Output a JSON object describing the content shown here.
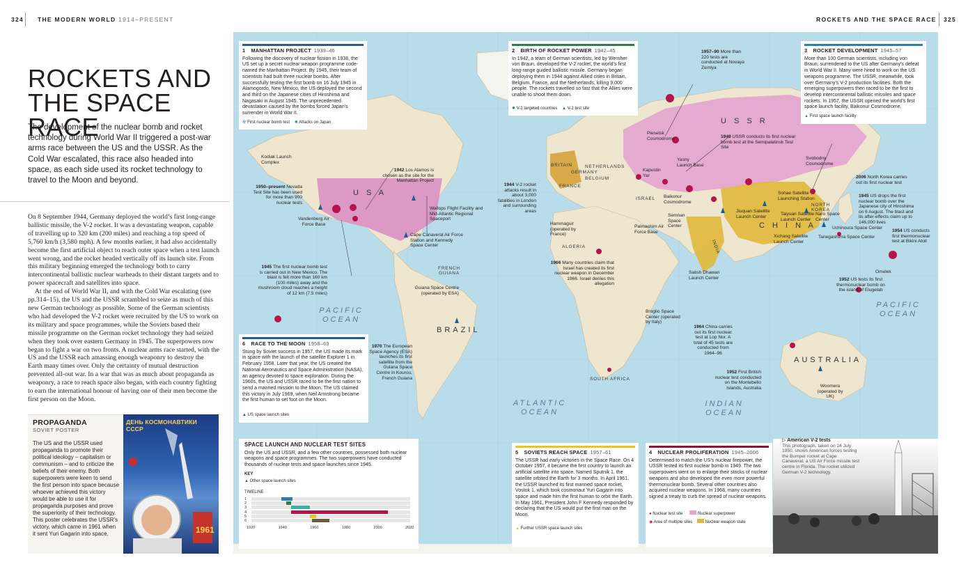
{
  "header": {
    "left_page": "324",
    "left_section_bold": "THE MODERN WORLD",
    "left_section_dates": "1914–PRESENT",
    "right_section": "ROCKETS AND THE SPACE RACE",
    "right_page": "325"
  },
  "title_line1": "ROCKETS AND",
  "title_line2": "THE SPACE RACE",
  "lead": "The development of the nuclear bomb and rocket technology during World War II triggered a post-war arms race between the US and the USSR. As the Cold War escalated, this race also headed into space, as each side used its rocket technology to travel to the Moon and beyond.",
  "body_paragraphs": [
    "On 8 September 1944, Germany deployed the world’s first long-range ballistic missile, the V-2 rocket. It was a devastating weapon, capable of travelling up to 320 km (200 miles) and reaching a top speed of 5,760 km/h (3,580 mph). A few months earlier, it had also accidentally become the first artificial object to reach outer space when a test launch went wrong, and the rocket headed vertically off its launch site. From this military beginning emerged the technology both to carry intercontinental ballistic nuclear warheads to their distant targets and to power spacecraft and satellites into space.",
    "At the end of World War II, and with the Cold War escalating (see pp.314–15), the US and the USSR scrambled to seize as much of this new German technology as possible. Some of the German scientists who had developed the V-2 rocket were recruited by the US to work on its military and space programmes, while the Soviets based their missile programme on the German rocket technology they had seized when they took over eastern Germany in 1945. The superpowers now began to fight a war on two fronts. A nuclear arms race started, with the US and the USSR each amassing enough weaponry to destroy the Earth many times over. Only the certainty of mutual destruction prevented all-out war. In a war that was as much about propaganda as weaponry, a race to reach space also began, with each country fighting to earn the international honour of having one of their men become the first person on the Moon."
  ],
  "propaganda": {
    "title": "PROPAGANDA",
    "subtitle": "SOVIET POSTER",
    "text": "The US and the USSR used propaganda to promote their political ideology – capitalism or communism – and to criticize the beliefs of their enemy. Both superpowers were keen to send the first person into space because whoever achieved this victory would be able to use it for propaganda purposes and prove the superiority of their technology. This poster celebrates the USSR’s victory, which came in 1961 when it sent Yuri Gagarin into space.",
    "poster_line1": "ДЕНЬ КОСМОНАВТИКИ",
    "poster_line2": "СССР",
    "poster_year": "1961"
  },
  "panels": {
    "p1": {
      "num": "1",
      "title": "MANHATTAN PROJECT",
      "dates": "1939–46",
      "color": "#2b5f8a",
      "text": "Following the discovery of nuclear fission in 1938, the US set up a secret nuclear weapon programme code-named the Manhattan Project. By 1945, their team of scientists had built three nuclear bombs. After successfully testing the first bomb on 16 July 1945 in Alamogordo, New Mexico, the US deployed the second and third on the Japanese cities of Hiroshima and Nagasaki in August 1945. The unprecedented devastation caused by the bombs forced Japan’s surrender in World War II.",
      "leg1": "First nuclear bomb test",
      "leg2": "Attacks on Japan"
    },
    "p2": {
      "num": "2",
      "title": "BIRTH OF ROCKET POWER",
      "dates": "1942–45",
      "color": "#2e7d4f",
      "text": "In 1942, a team of German scientists, led by Wernher von Braun, developed the V-2 rocket, the world’s first long-range guided ballistic missile. Germany began deploying them in 1944 against Allied cities in Britain, Belgium, France, and the Netherlands, killing 9,000 people. The rockets travelled so fast that the Allies were unable to shoot them down.",
      "leg1": "V-2 targeted countries",
      "leg2": "V-2 test site"
    },
    "p3": {
      "num": "3",
      "title": "ROCKET DEVELOPMENT",
      "dates": "1945–57",
      "color": "#2a7fb8",
      "text": "More than 100 German scientists, including von Braun, surrendered to the US after Germany’s defeat in World War II. Many were hired to work on the US weapons programme. The USSR, meanwhile, took over Germany’s V-2 production facilities. Both the emerging superpowers then raced to be the first to develop intercontinental ballistic missiles and space rockets. In 1957, the USSR opened the world’s first space launch facility, Baikonur Cosmodrome.",
      "leg1": "First space launch facility"
    },
    "p4": {
      "num": "4",
      "title": "NUCLEAR PROLIFERATION",
      "dates": "1945–2006",
      "color": "#8a1538",
      "text": "Determined to match the US’s nuclear firepower, the USSR tested its first nuclear bomb in 1949. The two superpowers went on to enlarge their stocks of nuclear weapons and also developed the even more powerful thermonuclear bomb. Several other countries also acquired nuclear weapons. In 1968, many countries signed a treaty to curb the spread of nuclear weapons.",
      "leg1": "Nuclear test site",
      "leg2": "Nuclear superpower",
      "leg3": "Area of multiple sites",
      "leg4": "Nuclear weapon state"
    },
    "p5": {
      "num": "5",
      "title": "SOVIETS REACH SPACE",
      "dates": "1957–61",
      "color": "#e8c51f",
      "text": "The USSR had early victories in the Space Race. On 4 October 1957, it became the first country to launch an artificial satellite into space. Named Sputnik 1, the satellite orbited the Earth for 3 months. In April 1961, the USSR launched its first manned space rocket, Vostok 1, which took cosmonaut Yuri Gagarin into space and made him the first human to orbit the Earth. In May 1961, President John F Kennedy responded by declaring that the US would put the first man on the Moon.",
      "leg1": "Further USSR space launch sites"
    },
    "p6": {
      "num": "6",
      "title": "RACE TO THE MOON",
      "dates": "1958–69",
      "color": "#1f5c8c",
      "text": "Stung by Soviet success in 1957, the US made its mark in space with the launch of the satellite Explorer 1 in February 1958. Later that year, the US created the National Aeronautics and Space Administration (NASA), an agency devoted to space exploration. During the 1960s, the US and USSR raced to be the first nation to send a manned mission to the Moon. The US claimed this victory in July 1969, when Neil Armstrong became the first human to set foot on the Moon.",
      "leg1": "US space launch sites"
    }
  },
  "key_box": {
    "title": "SPACE LAUNCH AND NUCLEAR TEST SITES",
    "text": "Only the US and USSR, and a few other countries, possessed both nuclear weapons and space programmes. The two superpowers have conducted thousands of nuclear tests and space launches since 1945.",
    "key_label": "KEY",
    "key_item": "Other space launch sites",
    "timeline_label": "TIMELINE",
    "rows": [
      "1",
      "2",
      "3",
      "4",
      "5",
      "6"
    ],
    "ticks": [
      "1920",
      "1940",
      "1960",
      "1980",
      "2000",
      "2020"
    ],
    "bars": [
      {
        "row": 1,
        "start": 1939,
        "end": 1946,
        "color": "#2b7fa8"
      },
      {
        "row": 2,
        "start": 1942,
        "end": 1945,
        "color": "#2e7d4f"
      },
      {
        "row": 3,
        "start": 1945,
        "end": 1957,
        "color": "#3cafaa"
      },
      {
        "row": 4,
        "start": 1945,
        "end": 2006,
        "color": "#b5134b"
      },
      {
        "row": 5,
        "start": 1957,
        "end": 1961,
        "color": "#e8c51f"
      },
      {
        "row": 6,
        "start": 1958,
        "end": 1969,
        "color": "#6b5a3e"
      }
    ]
  },
  "oceans": {
    "pac_w1": "PACIFIC",
    "pac_w2": "OCEAN",
    "pac_e1": "PACIFIC",
    "pac_e2": "OCEAN",
    "atl1": "ATLANTIC",
    "atl2": "OCEAN",
    "ind1": "INDIAN",
    "ind2": "OCEAN"
  },
  "countries": {
    "usa": "U S A",
    "ussr": "U S S R",
    "china": "C H I N A",
    "india": "INDIA",
    "brazil": "BRAZIL",
    "australia": "AUSTRALIA",
    "south_africa": "SOUTH AFRICA",
    "algeria": "ALGERIA",
    "israel": "ISRAEL",
    "britain": "BRITAIN",
    "netherlands": "NETHERLANDS",
    "germany": "GERMANY",
    "belgium": "BELGIUM",
    "france": "FRANCE",
    "french_guiana": "FRENCH GUIANA",
    "north_korea": "NORTH KOREA"
  },
  "map_labels": {
    "kodiak": "Kodiak Launch Complex",
    "nevada_b": "1950–present",
    "nevada": "Nevada Test Site has been used for more than 900 nuclear tests",
    "vandenberg": "Vandenberg Air Force Base",
    "losalamos_b": "1942",
    "losalamos": "Los Alamos is chosen as the site for the Manhattan Project",
    "wallops": "Wallops Flight Facility and Mid-Atlantic Regional Spaceport",
    "canaveral": "Cape Canaveral Air Force Station and Kennedy Space Center",
    "nm_b": "1945",
    "nm": "The first nuclear bomb test is carried out in New Mexico. The blast is felt more than 160 km (100 miles) away and the mushroom cloud reaches a height of 12 km (7.5 miles)",
    "guiana": "Guiana Space Centre (operated by ESA)",
    "esa_b": "1970",
    "esa": "The European Space Agency (ESA) launches its first satellite from the Guiana Space Centre in Kourou, French Guiana",
    "v2_b": "1944",
    "v2": "V-2 rocket attacks result in about 3,000 fatalities in London and surrounding areas",
    "hammaguir": "Hammaguir (operated by France)",
    "palmachim": "Palmachim Air Force Base",
    "countries_b": "1966",
    "countries": "Many countries claim that Israel has created its first nuclear weapon in December 1966. Israel denies this allegation",
    "broglio": "Broglio Space Center (operated by Italy)",
    "china_b": "1964",
    "china": "China carries out its first nuclear test at Lop Nor. A total of 45 tests are conducted from 1964–96",
    "brit_b": "1952",
    "brit": "First British nuclear test conducted on the Montebello Islands, Australia",
    "woomera": "Woomera (operated by UK)",
    "novaya_b": "1957–90",
    "novaya": "More than 220 tests are conducted at Novaya Zemlya",
    "semi_b": "1949",
    "semi": "USSR conducts its first nuclear bomb test at the Semipalatinsk Test Site",
    "plesetsk": "Plesetsk Cosmodrome",
    "yasny": "Yasny Launch Base",
    "kapustin": "Kapustin Yar",
    "baikonur": "Baikonur Cosmodrome",
    "semnan": "Semnan Space Center",
    "svobodny": "Svobodny Cosmodrome",
    "sohae": "Sohae Satellite Launching Station",
    "nk_b": "2006",
    "nk": "North Korea carries out its first nuclear test",
    "hiro_b": "1945",
    "hiro": "US drops the first nuclear bomb over the Japanese city of Hiroshima on 6 August. The blast and its after-effects claim up to 146,000 lives",
    "naro": "Naro Space Center",
    "uchinoura": "Uchinoura Space Center",
    "tanegashima": "Tanegashima Space Center",
    "jiuquan": "Jiuquan Satellite Launch Center",
    "taiyuan": "Taiyuan Satellite Launch Center",
    "xichang": "Xichang Satellite Launch Center",
    "satish": "Satish Dhawan Launch Center",
    "bikini_b": "1954",
    "bikini": "US conducts first thermonuclear test at Bikini Atoll",
    "omelek": "Omelek",
    "elug_b": "1952",
    "elug": "US tests its first thermonuclear bomb on the island of Elugelab"
  },
  "photo": {
    "title": "American V-2 tests",
    "text": "This photograph, taken on 24 July 1950, shows American forces testing the Bumper rocket at Cape Canaveral, a US Air Force missile test centre in Florida. The rocket utilized German V-2 technology."
  },
  "colors": {
    "ussr_pink": "#e3a3cf",
    "usa_pink": "#d98bc4",
    "nuclear_state": "#e0b83a",
    "v2_target": "#d4a23a",
    "ocean": "#b9dcea",
    "land": "#efe6cf",
    "nuclear_red": "#b5134b"
  }
}
